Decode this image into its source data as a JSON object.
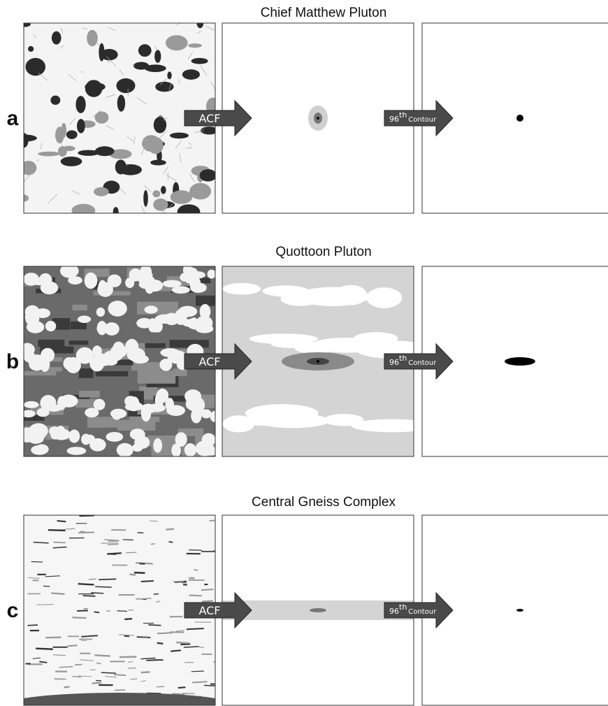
{
  "rows": [
    {
      "label": "a",
      "title": "Chief Matthew Pluton",
      "arrow1": "ACF",
      "arrow2": {
        "number": "96",
        "sup": "th",
        "word": "Contour"
      }
    },
    {
      "label": "b",
      "title": "Quottoon Pluton",
      "arrow1": "ACF",
      "arrow2": {
        "number": "96",
        "sup": "th",
        "word": "Contour"
      }
    },
    {
      "label": "c",
      "title": "Central Gneiss Complex",
      "arrow1": "ACF",
      "arrow2": {
        "number": "96",
        "sup": "th",
        "word": "Contour"
      }
    }
  ]
}
